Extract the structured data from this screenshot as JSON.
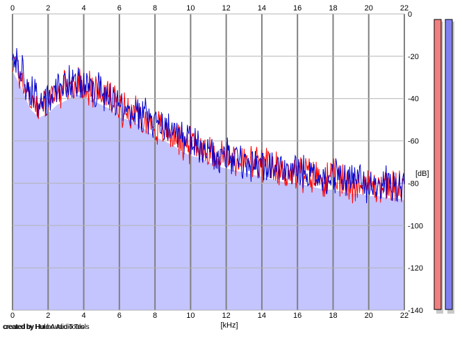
{
  "chart_data": {
    "type": "area",
    "xlabel": "[kHz]",
    "ylabel": "[dB]",
    "xlim": [
      0,
      22
    ],
    "ylim": [
      -140,
      0
    ],
    "x_ticks": [
      "0",
      "2",
      "4",
      "6",
      "8",
      "10",
      "12",
      "14",
      "16",
      "18",
      "20",
      "22"
    ],
    "y_ticks": [
      "0",
      "-20",
      "-40",
      "-60",
      "-80",
      "-100",
      "-120",
      "-140"
    ],
    "grid": true,
    "series": [
      {
        "color": "#ff0000",
        "x": [
          0,
          0.5,
          1,
          1.5,
          2,
          2.5,
          3,
          3.5,
          4,
          4.5,
          5,
          5.5,
          6,
          6.5,
          7,
          7.5,
          8,
          8.5,
          9,
          9.5,
          10,
          10.5,
          11,
          11.5,
          12,
          12.5,
          13,
          13.5,
          14,
          14.5,
          15,
          15.5,
          16,
          16.5,
          17,
          17.5,
          18,
          18.5,
          19,
          19.5,
          20,
          20.5,
          21,
          21.5,
          22
        ],
        "y": [
          -22,
          -30,
          -40,
          -44,
          -42,
          -38,
          -36,
          -33,
          -34,
          -36,
          -38,
          -40,
          -44,
          -45,
          -47,
          -50,
          -53,
          -55,
          -57,
          -60,
          -62,
          -63,
          -65,
          -67,
          -68,
          -69,
          -70,
          -71,
          -72,
          -73,
          -74,
          -75,
          -75,
          -76,
          -77,
          -78,
          -78,
          -79,
          -80,
          -80,
          -81,
          -81,
          -82,
          -82,
          -83
        ]
      },
      {
        "color": "#0000cc",
        "x": [
          0,
          0.5,
          1,
          1.5,
          2,
          2.5,
          3,
          3.5,
          4,
          4.5,
          5,
          5.5,
          6,
          6.5,
          7,
          7.5,
          8,
          8.5,
          9,
          9.5,
          10,
          10.5,
          11,
          11.5,
          12,
          12.5,
          13,
          13.5,
          14,
          14.5,
          15,
          15.5,
          16,
          16.5,
          17,
          17.5,
          18,
          18.5,
          19,
          19.5,
          20,
          20.5,
          21,
          21.5,
          22
        ],
        "y": [
          -20,
          -28,
          -38,
          -42,
          -40,
          -36,
          -34,
          -31,
          -33,
          -35,
          -37,
          -39,
          -43,
          -44,
          -46,
          -49,
          -52,
          -54,
          -56,
          -59,
          -61,
          -62,
          -64,
          -66,
          -67,
          -68,
          -69,
          -70,
          -71,
          -72,
          -73,
          -74,
          -74,
          -75,
          -76,
          -77,
          -77,
          -78,
          -79,
          -79,
          -80,
          -80,
          -81,
          -81,
          -82
        ]
      }
    ],
    "fill_color": "#c4c4ff",
    "meter_colors": [
      "#f08080",
      "#8080f0"
    ]
  },
  "credit": {
    "line1": "created by Huubo Audio Tools",
    "line2": "created by Hulo Audio Tools"
  }
}
